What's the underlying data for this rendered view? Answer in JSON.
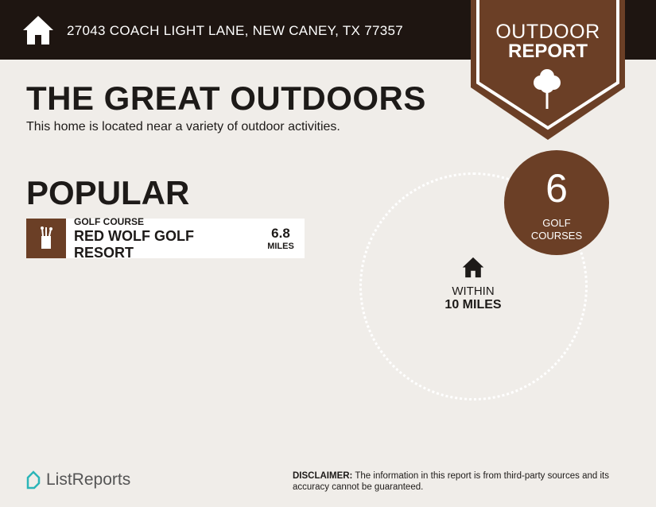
{
  "header": {
    "address": "27043 COACH LIGHT LANE, NEW CANEY, TX 77357",
    "home_icon": "house-icon"
  },
  "banner": {
    "line1": "OUTDOOR",
    "line2": "REPORT",
    "icon": "tree-icon"
  },
  "intro": {
    "title": "THE GREAT OUTDOORS",
    "subtitle": "This home is located near a variety of outdoor activities."
  },
  "popular": {
    "heading": "POPULAR",
    "items": [
      {
        "icon": "golf-bag-icon",
        "category": "GOLF COURSE",
        "name": "RED WOLF GOLF RESORT",
        "distance": "6.8",
        "unit": "MILES"
      }
    ]
  },
  "radius": {
    "count": "6",
    "label1": "GOLF",
    "label2": "COURSES",
    "within": "WITHIN",
    "range": "10 MILES"
  },
  "footer": {
    "logo": "ListReports",
    "disclaimer_label": "DISCLAIMER:",
    "disclaimer_text": " The information in this report is from third-party sources and its accuracy cannot be guaranteed."
  },
  "colors": {
    "brown": "#6b3f26",
    "header": "#1e1511",
    "background": "#f0ede9",
    "logo_accent": "#2bb5b8"
  }
}
